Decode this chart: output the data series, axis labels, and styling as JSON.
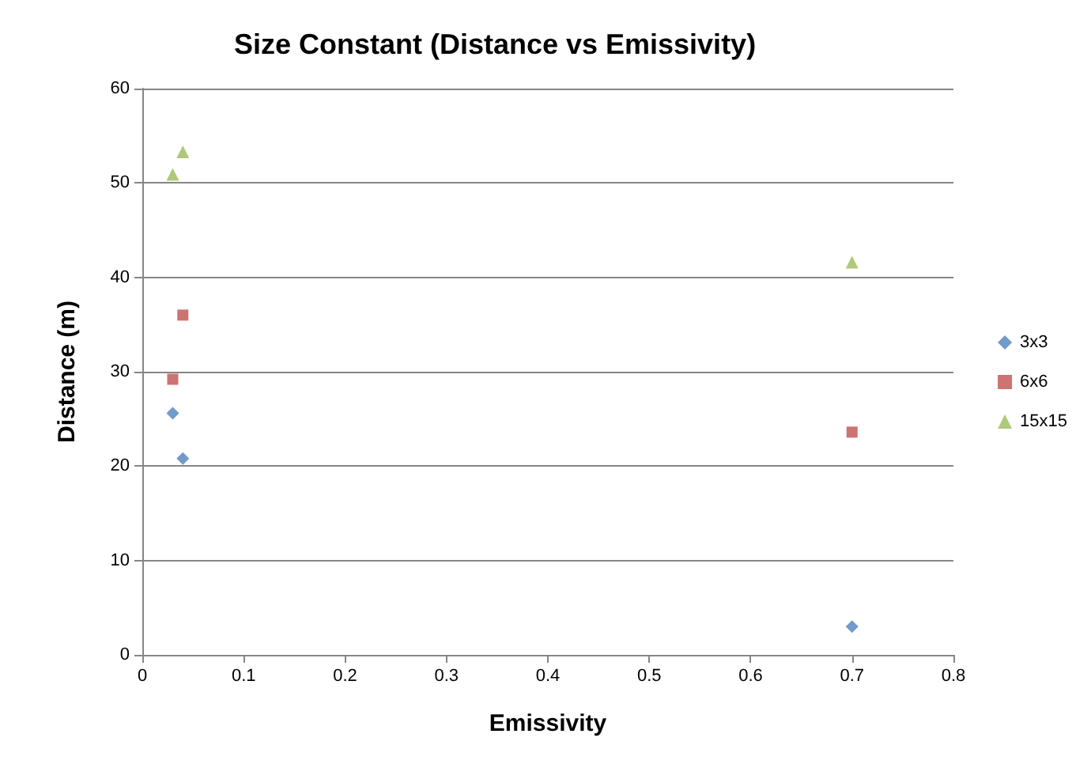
{
  "chart_data": {
    "type": "scatter",
    "title": "Size Constant (Distance vs Emissivity)",
    "xlabel": "Emissivity",
    "ylabel": "Distance (m)",
    "xlim": [
      0,
      0.8
    ],
    "xticks": [
      0,
      0.1,
      0.2,
      0.3,
      0.4,
      0.5,
      0.6,
      0.7,
      0.8
    ],
    "ylim": [
      0,
      60
    ],
    "yticks": [
      0,
      10,
      20,
      30,
      40,
      50,
      60
    ],
    "grid": "y",
    "legend": "right",
    "series": [
      {
        "name": "3x3",
        "color": "#4f81bd",
        "marker": "diamond",
        "x": [
          0.03,
          0.04,
          0.7
        ],
        "values": [
          25.6,
          20.8,
          3.0
        ]
      },
      {
        "name": "6x6",
        "color": "#c0504d",
        "marker": "square",
        "x": [
          0.03,
          0.04,
          0.7
        ],
        "values": [
          29.2,
          36.0,
          23.6
        ]
      },
      {
        "name": "15x15",
        "color": "#9bbb59",
        "marker": "triangle",
        "x": [
          0.03,
          0.04,
          0.7
        ],
        "values": [
          50.9,
          53.3,
          41.6
        ]
      }
    ]
  }
}
